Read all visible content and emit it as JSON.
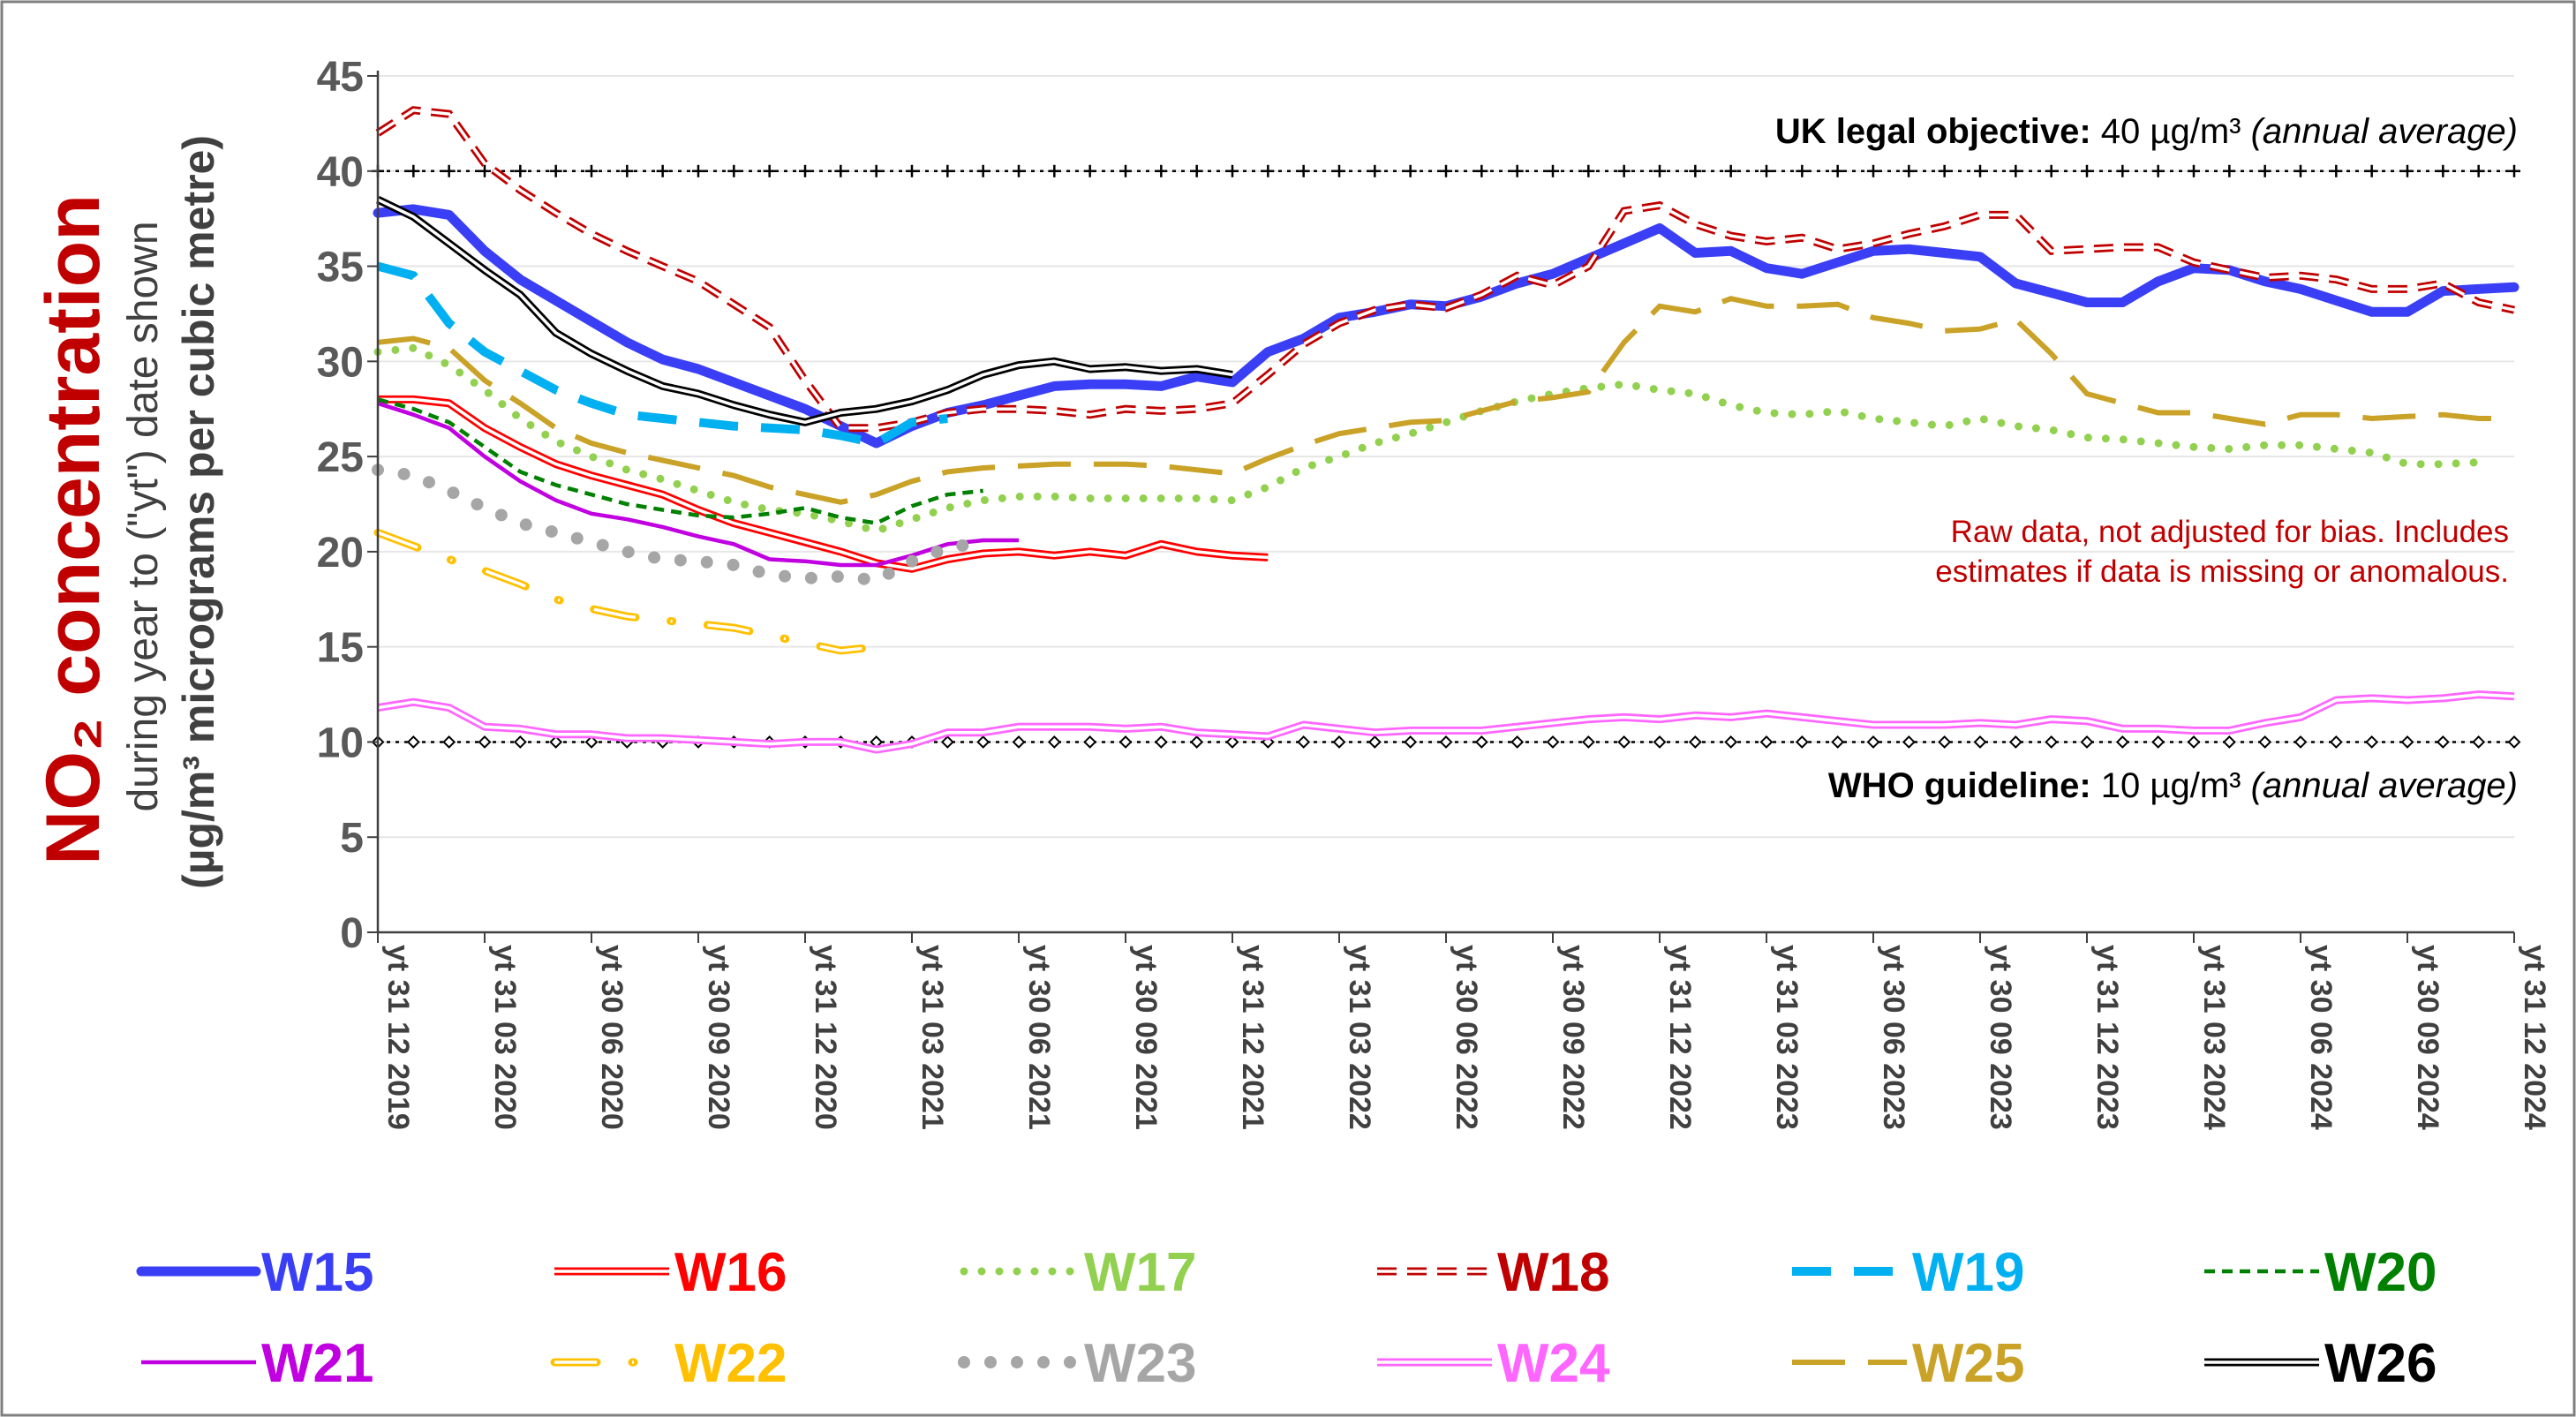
{
  "chart_data": {
    "type": "line",
    "title": "NO₂ concentration",
    "ylabel_line1": "during year to (\"yt\") date shown",
    "ylabel_line2": "(µg/m³ micrograms per cubic metre)",
    "ylim": [
      0,
      45
    ],
    "yticks": [
      "0",
      "5",
      "10",
      "15",
      "20",
      "25",
      "30",
      "35",
      "40",
      "45"
    ],
    "xlabels": [
      "yt 31 12 2019",
      "yt 31 03 2020",
      "yt 30 06 2020",
      "yt 30 09 2020",
      "yt 31 12 2020",
      "yt 31 03 2021",
      "yt 30 06 2021",
      "yt 30 09 2021",
      "yt 31 12 2021",
      "yt 31 03 2022",
      "yt 30 06 2022",
      "yt 30 09 2022",
      "yt 31 12 2022",
      "yt 31 03 2023",
      "yt 30 06 2023",
      "yt 30 09 2023",
      "yt 31 12 2023",
      "yt 31 03 2024",
      "yt 30 06 2024",
      "yt 30 09 2024",
      "yt 31 12 2024"
    ],
    "x_month_count": 60,
    "reference_lines": [
      {
        "value": 40,
        "bold": "UK legal objective:",
        "value_text": " 40 µg/m³ ",
        "italic": "(annual average)"
      },
      {
        "value": 10,
        "bold": "WHO guideline:",
        "value_text": " 10 µg/m³ ",
        "italic": "(annual average)"
      }
    ],
    "note_line1": "Raw data, not adjusted for bias.   Includes",
    "note_line2": "estimates if data is missing or anomalous.",
    "series": [
      {
        "name": "W15",
        "color": "#3a3ff5",
        "style": "solid-thick",
        "start": 0,
        "values": [
          37.8,
          38,
          37.7,
          35.8,
          34.3,
          33.2,
          32.1,
          31,
          30.1,
          29.6,
          28.9,
          28.2,
          27.5,
          26.6,
          25.7,
          26.6,
          27.3,
          27.7,
          28.2,
          28.7,
          28.8,
          28.8,
          28.7,
          29.2,
          28.9,
          30.5,
          31.2,
          32.3,
          32.6,
          33,
          32.9,
          33.4,
          34.1,
          34.6,
          35.4,
          36.2,
          37,
          35.7,
          35.8,
          34.9,
          34.6,
          35.2,
          35.8,
          35.9,
          35.7,
          35.5,
          34.1,
          33.6,
          33.1,
          33.1,
          34.2,
          34.9,
          34.8,
          34.2,
          33.8,
          33.2,
          32.6,
          32.6,
          33.7,
          33.8,
          33.9
        ]
      },
      {
        "name": "W16",
        "color": "#ff0000",
        "style": "double",
        "start": 0,
        "values": [
          28,
          28,
          27.8,
          26.5,
          25.5,
          24.6,
          24,
          23.5,
          23,
          22.2,
          21.5,
          21,
          20.5,
          20,
          19.4,
          19.1,
          19.6,
          19.9,
          20,
          19.8,
          20,
          19.8,
          20.4,
          20,
          19.8,
          19.7
        ]
      },
      {
        "name": "W17",
        "color": "#92d050",
        "style": "dotted",
        "start": 0,
        "values": [
          30.5,
          30.7,
          29.8,
          28.5,
          27,
          25.8,
          25,
          24.3,
          23.8,
          23.2,
          22.6,
          22.2,
          22,
          21.6,
          21.1,
          21.7,
          22.3,
          22.7,
          22.9,
          22.9,
          22.8,
          22.8,
          22.8,
          22.8,
          22.7,
          23.4,
          24.4,
          25,
          25.7,
          26.2,
          26.8,
          27.4,
          27.9,
          28.3,
          28.6,
          28.8,
          28.5,
          28.3,
          27.7,
          27.3,
          27.2,
          27.4,
          27,
          26.8,
          26.6,
          27,
          26.6,
          26.4,
          26,
          25.9,
          25.7,
          25.5,
          25.4,
          25.6,
          25.6,
          25.4,
          25.2,
          24.6,
          24.6,
          24.7
        ]
      },
      {
        "name": "W18",
        "color": "#c00000",
        "style": "double-dash",
        "start": 0,
        "values": [
          42,
          43.2,
          43,
          40.4,
          39,
          37.8,
          36.7,
          35.8,
          35,
          34.2,
          33,
          31.8,
          29,
          26.5,
          26.5,
          26.8,
          27.3,
          27.5,
          27.5,
          27.4,
          27.2,
          27.5,
          27.4,
          27.5,
          27.8,
          29.3,
          30.9,
          32,
          32.7,
          33,
          32.8,
          33.5,
          34.5,
          34,
          35,
          37.9,
          38.2,
          37.2,
          36.6,
          36.3,
          36.5,
          35.9,
          36.2,
          36.7,
          37.1,
          37.7,
          37.7,
          35.8,
          35.9,
          36,
          36,
          35.2,
          34.8,
          34.4,
          34.5,
          34.3,
          33.8,
          33.8,
          34.1,
          33.1,
          32.7
        ]
      },
      {
        "name": "W19",
        "color": "#00b0f0",
        "style": "dash",
        "start": 0,
        "values": [
          35,
          34.5,
          32,
          30.5,
          29.5,
          28.5,
          27.8,
          27.2,
          27,
          26.8,
          26.6,
          26.5,
          26.4,
          26.1,
          25.7,
          26.8,
          27
        ]
      },
      {
        "name": "W20",
        "color": "#008000",
        "style": "short-dash",
        "start": 0,
        "values": [
          28,
          27.5,
          26.8,
          25.5,
          24.2,
          23.5,
          23,
          22.5,
          22.2,
          21.9,
          21.8,
          22,
          22.3,
          21.8,
          21.5,
          22.4,
          23,
          23.2
        ]
      },
      {
        "name": "W21",
        "color": "#c000e0",
        "style": "solid",
        "start": 0,
        "values": [
          27.8,
          27.2,
          26.5,
          25,
          23.7,
          22.7,
          22,
          21.7,
          21.3,
          20.8,
          20.4,
          19.6,
          19.5,
          19.3,
          19.3,
          19.8,
          20.4,
          20.6,
          20.6
        ]
      },
      {
        "name": "W22",
        "color": "#ffc000",
        "style": "double-dash-dot",
        "start": 0,
        "values": [
          21,
          20.3,
          19.6,
          19,
          18.3,
          17.5,
          17,
          16.6,
          16.4,
          16.2,
          16,
          15.6,
          15.2,
          14.8,
          15
        ]
      },
      {
        "name": "W23",
        "color": "#a6a6a6",
        "style": "round-dots",
        "start": 0,
        "values": [
          24.3,
          24,
          23.2,
          22.3,
          21.5,
          21,
          20.5,
          20,
          19.6,
          19.5,
          19.3,
          18.8,
          18.6,
          18.7,
          18.5,
          19.5,
          20.2,
          20.5
        ]
      },
      {
        "name": "W24",
        "color": "#ff66ff",
        "style": "double",
        "start": 0,
        "values": [
          11.8,
          12.1,
          11.8,
          10.8,
          10.7,
          10.4,
          10.4,
          10.2,
          10.2,
          10.1,
          10,
          9.9,
          10,
          10,
          9.6,
          9.9,
          10.5,
          10.5,
          10.8,
          10.8,
          10.8,
          10.7,
          10.8,
          10.5,
          10.4,
          10.3,
          10.9,
          10.7,
          10.5,
          10.6,
          10.6,
          10.6,
          10.8,
          11,
          11.2,
          11.3,
          11.2,
          11.4,
          11.3,
          11.5,
          11.3,
          11.1,
          10.9,
          10.9,
          10.9,
          11,
          10.9,
          11.2,
          11.1,
          10.7,
          10.7,
          10.6,
          10.6,
          11,
          11.3,
          12.2,
          12.3,
          12.2,
          12.3,
          12.5,
          12.4
        ]
      },
      {
        "name": "W25",
        "color": "#c9a227",
        "style": "long-dash",
        "start": 0,
        "values": [
          31,
          31.2,
          30.7,
          29,
          27.8,
          26.5,
          25.7,
          25.2,
          24.8,
          24.4,
          24,
          23.4,
          23,
          22.6,
          23,
          23.7,
          24.2,
          24.4,
          24.5,
          24.6,
          24.6,
          24.6,
          24.5,
          24.3,
          24.1,
          24.9,
          25.6,
          26.2,
          26.5,
          26.8,
          26.9,
          27.4,
          27.9,
          28.1,
          28.4,
          31,
          32.9,
          32.6,
          33.3,
          32.9,
          32.9,
          33,
          32.3,
          32,
          31.6,
          31.7,
          32.2,
          30.4,
          28.3,
          27.8,
          27.3,
          27.3,
          27,
          26.7,
          27.2,
          27.2,
          27,
          27.1,
          27.2,
          27,
          27
        ]
      },
      {
        "name": "W26",
        "color": "#000000",
        "style": "double",
        "start": 0,
        "values": [
          38.5,
          37.6,
          36.2,
          34.8,
          33.5,
          31.5,
          30.4,
          29.5,
          28.7,
          28.3,
          27.7,
          27.2,
          26.8,
          27.3,
          27.5,
          27.9,
          28.5,
          29.3,
          29.8,
          30,
          29.6,
          29.7,
          29.5,
          29.6,
          29.3
        ]
      }
    ],
    "legend_order": [
      "W15",
      "W16",
      "W17",
      "W18",
      "W19",
      "W20",
      "W21",
      "W22",
      "W23",
      "W24",
      "W25",
      "W26"
    ]
  }
}
